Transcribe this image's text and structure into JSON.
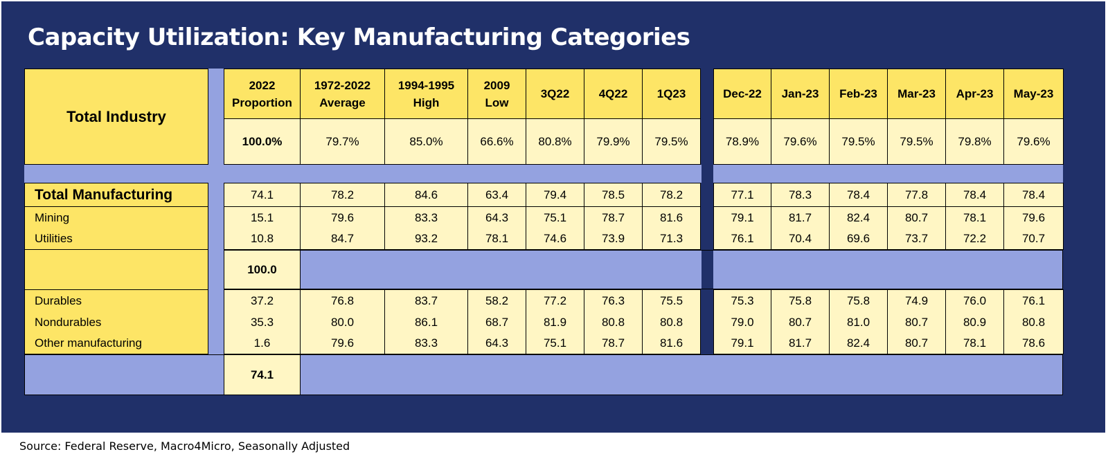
{
  "title": "Capacity Utilization: Key Manufacturing Categories",
  "source": "Source: Federal Reserve, Macro4Micro, Seasonally Adjusted",
  "total_industry_label": "Total Industry",
  "headers": [
    [
      "2022",
      "Proportion"
    ],
    [
      "1972-2022",
      "Average"
    ],
    [
      "1994-1995",
      "High"
    ],
    [
      "2009",
      "Low"
    ],
    [
      "3Q22",
      ""
    ],
    [
      "4Q22",
      ""
    ],
    [
      "1Q23",
      ""
    ],
    [
      "Dec-22",
      ""
    ],
    [
      "Jan-23",
      ""
    ],
    [
      "Feb-23",
      ""
    ],
    [
      "Mar-23",
      ""
    ],
    [
      "Apr-23",
      ""
    ],
    [
      "May-23",
      ""
    ]
  ],
  "total_industry_values": [
    "100.0%",
    "79.7%",
    "85.0%",
    "66.6%",
    "80.8%",
    "79.9%",
    "79.5%",
    "78.9%",
    "79.6%",
    "79.5%",
    "79.5%",
    "79.8%",
    "79.6%"
  ],
  "group1": [
    {
      "label": "Total Manufacturing",
      "values": [
        "74.1",
        "78.2",
        "84.6",
        "63.4",
        "79.4",
        "78.5",
        "78.2",
        "77.1",
        "78.3",
        "78.4",
        "77.8",
        "78.4",
        "78.4"
      ]
    },
    {
      "label": "Mining",
      "values": [
        "15.1",
        "79.6",
        "83.3",
        "64.3",
        "75.1",
        "78.7",
        "81.6",
        "79.1",
        "81.7",
        "82.4",
        "80.7",
        "78.1",
        "79.6"
      ]
    },
    {
      "label": "Utilities",
      "values": [
        "10.8",
        "84.7",
        "93.2",
        "78.1",
        "74.6",
        "73.9",
        "71.3",
        "76.1",
        "70.4",
        "69.6",
        "73.7",
        "72.2",
        "70.7"
      ]
    }
  ],
  "group1_total": "100.0",
  "group2": [
    {
      "label": "Durables",
      "values": [
        "37.2",
        "76.8",
        "83.7",
        "58.2",
        "77.2",
        "76.3",
        "75.5",
        "75.3",
        "75.8",
        "75.8",
        "74.9",
        "76.0",
        "76.1"
      ]
    },
    {
      "label": "Nondurables",
      "values": [
        "35.3",
        "80.0",
        "86.1",
        "68.7",
        "81.9",
        "80.8",
        "80.8",
        "79.0",
        "80.7",
        "81.0",
        "80.7",
        "80.9",
        "80.8"
      ]
    },
    {
      "label": "Other manufacturing",
      "values": [
        "1.6",
        "79.6",
        "83.3",
        "64.3",
        "75.1",
        "78.7",
        "81.6",
        "79.1",
        "81.7",
        "82.4",
        "80.7",
        "78.1",
        "78.6"
      ]
    }
  ],
  "group2_total": "74.1",
  "colors": {
    "background": "#203069",
    "header_fill": "#fde566",
    "value_fill": "#fff6c4",
    "band_fill": "#94a2e0"
  }
}
